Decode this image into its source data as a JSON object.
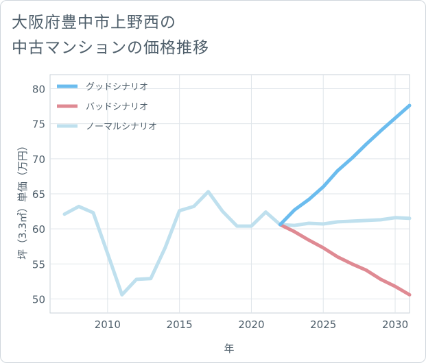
{
  "title": {
    "line1": "大阪府豊中市上野西の",
    "line2": "中古マンションの価格推移"
  },
  "chart_data": {
    "type": "line",
    "title": "大阪府豊中市上野西の中古マンションの価格推移",
    "xlabel": "年",
    "ylabel": "坪（3.3㎡）単価（万円）",
    "xlim": [
      2006,
      2031
    ],
    "ylim": [
      48,
      82
    ],
    "xticks": [
      2010,
      2015,
      2020,
      2025,
      2030
    ],
    "yticks": [
      50,
      55,
      60,
      65,
      70,
      75,
      80
    ],
    "grid": true,
    "legend_position": "top-left",
    "series": [
      {
        "name": "グッドシナリオ",
        "color": "#6bbcee",
        "x": [
          2022,
          2023,
          2024,
          2025,
          2026,
          2027,
          2028,
          2029,
          2030,
          2031
        ],
        "values": [
          60.6,
          62.7,
          64.2,
          66.0,
          68.3,
          70.1,
          72.1,
          74.0,
          75.8,
          77.6
        ]
      },
      {
        "name": "バッドシナリオ",
        "color": "#df8a93",
        "x": [
          2022,
          2023,
          2024,
          2025,
          2026,
          2027,
          2028,
          2029,
          2030,
          2031
        ],
        "values": [
          60.6,
          59.6,
          58.4,
          57.3,
          56.0,
          55.0,
          54.1,
          52.8,
          51.8,
          50.6
        ]
      },
      {
        "name": "ノーマルシナリオ",
        "color": "#bfe0ee",
        "x": [
          2007,
          2008,
          2009,
          2010,
          2011,
          2012,
          2013,
          2014,
          2015,
          2016,
          2017,
          2018,
          2019,
          2020,
          2021,
          2022,
          2023,
          2024,
          2025,
          2026,
          2027,
          2028,
          2029,
          2030,
          2031
        ],
        "values": [
          62.1,
          63.2,
          62.3,
          56.5,
          50.6,
          52.8,
          52.9,
          57.3,
          62.6,
          63.2,
          65.3,
          62.5,
          60.4,
          60.4,
          62.4,
          60.6,
          60.5,
          60.8,
          60.7,
          61.0,
          61.1,
          61.2,
          61.3,
          61.6,
          61.5
        ]
      }
    ]
  }
}
